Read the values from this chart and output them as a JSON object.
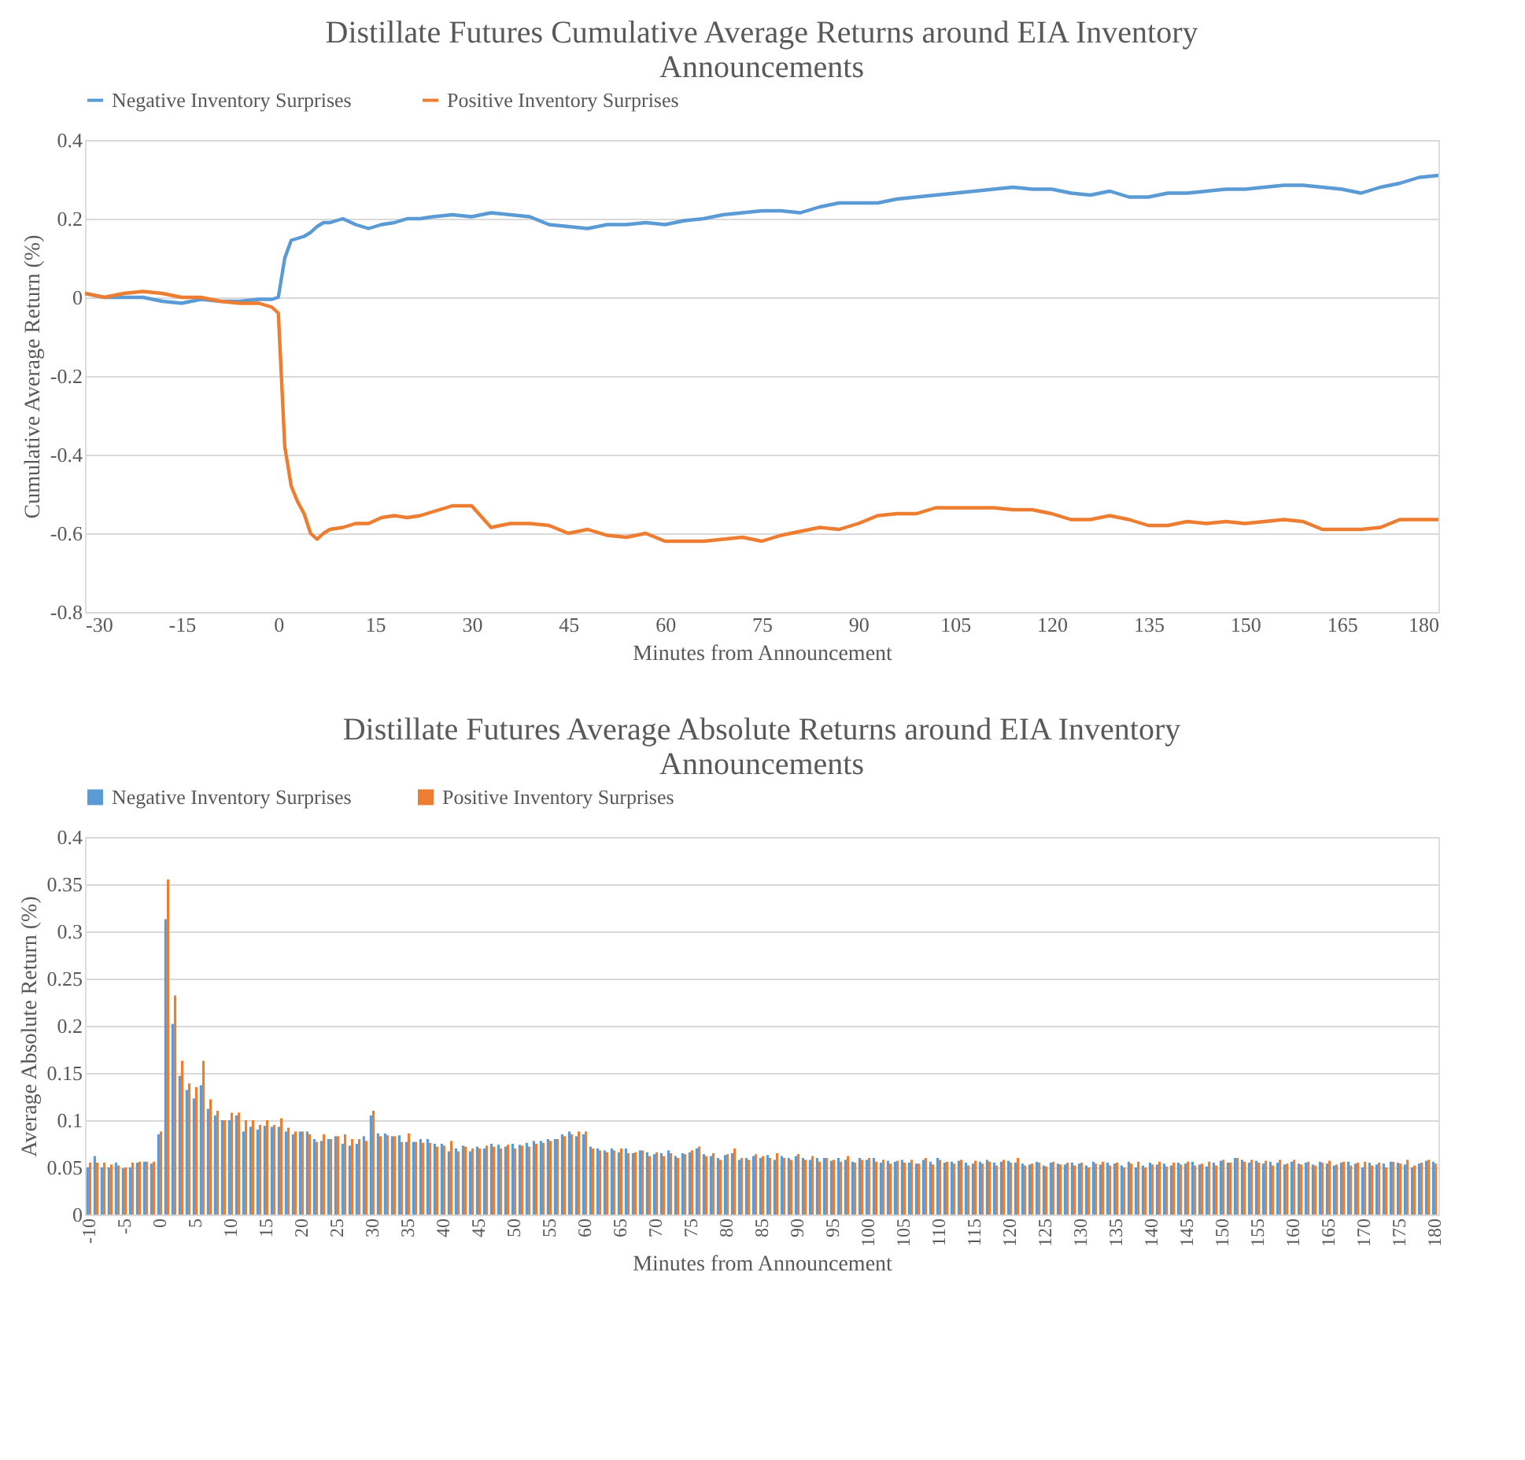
{
  "chart_data": [
    {
      "type": "line",
      "title": "Distillate Futures Cumulative Average Returns around EIA Inventory Announcements",
      "xlabel": "Minutes from Announcement",
      "ylabel": "Cumulative Average Return (%)",
      "x": [
        -30,
        -27,
        -24,
        -21,
        -18,
        -15,
        -12,
        -9,
        -6,
        -3,
        -1,
        0,
        1,
        2,
        3,
        4,
        5,
        6,
        7,
        8,
        10,
        12,
        14,
        16,
        18,
        20,
        22,
        24,
        27,
        30,
        33,
        36,
        39,
        42,
        45,
        48,
        51,
        54,
        57,
        60,
        63,
        66,
        69,
        72,
        75,
        78,
        81,
        84,
        87,
        90,
        93,
        96,
        99,
        102,
        105,
        108,
        111,
        114,
        117,
        120,
        123,
        126,
        129,
        132,
        135,
        138,
        141,
        144,
        147,
        150,
        153,
        156,
        159,
        162,
        165,
        168,
        171,
        174,
        177,
        180
      ],
      "series": [
        {
          "name": "Negative Inventory Surprises",
          "color": "#5b9bd5",
          "values": [
            0.01,
            0.0,
            0.0,
            0.0,
            -0.01,
            -0.015,
            -0.005,
            -0.01,
            -0.01,
            -0.005,
            -0.005,
            0.0,
            0.1,
            0.145,
            0.15,
            0.155,
            0.165,
            0.18,
            0.19,
            0.19,
            0.2,
            0.185,
            0.175,
            0.185,
            0.19,
            0.2,
            0.2,
            0.205,
            0.21,
            0.205,
            0.215,
            0.21,
            0.205,
            0.185,
            0.18,
            0.175,
            0.185,
            0.185,
            0.19,
            0.185,
            0.195,
            0.2,
            0.21,
            0.215,
            0.22,
            0.22,
            0.215,
            0.23,
            0.24,
            0.24,
            0.24,
            0.25,
            0.255,
            0.26,
            0.265,
            0.27,
            0.275,
            0.28,
            0.275,
            0.275,
            0.265,
            0.26,
            0.27,
            0.255,
            0.255,
            0.265,
            0.265,
            0.27,
            0.275,
            0.275,
            0.28,
            0.285,
            0.285,
            0.28,
            0.275,
            0.265,
            0.28,
            0.29,
            0.305,
            0.31
          ]
        },
        {
          "name": "Positive Inventory Surprises",
          "color": "#ed7d31",
          "values": [
            0.01,
            0.0,
            0.01,
            0.015,
            0.01,
            0.0,
            0.0,
            -0.01,
            -0.015,
            -0.015,
            -0.025,
            -0.04,
            -0.38,
            -0.48,
            -0.52,
            -0.55,
            -0.6,
            -0.615,
            -0.6,
            -0.59,
            -0.585,
            -0.575,
            -0.575,
            -0.56,
            -0.555,
            -0.56,
            -0.555,
            -0.545,
            -0.53,
            -0.53,
            -0.585,
            -0.575,
            -0.575,
            -0.58,
            -0.6,
            -0.59,
            -0.605,
            -0.61,
            -0.6,
            -0.62,
            -0.62,
            -0.62,
            -0.615,
            -0.61,
            -0.62,
            -0.605,
            -0.595,
            -0.585,
            -0.59,
            -0.575,
            -0.555,
            -0.55,
            -0.55,
            -0.535,
            -0.535,
            -0.535,
            -0.535,
            -0.54,
            -0.54,
            -0.55,
            -0.565,
            -0.565,
            -0.555,
            -0.565,
            -0.58,
            -0.58,
            -0.57,
            -0.575,
            -0.57,
            -0.575,
            -0.57,
            -0.565,
            -0.57,
            -0.59,
            -0.59,
            -0.59,
            -0.585,
            -0.565,
            -0.565,
            -0.565
          ]
        }
      ],
      "xlim": [
        -30,
        180
      ],
      "xticks": [
        -30,
        -15,
        0,
        15,
        30,
        45,
        60,
        75,
        90,
        105,
        120,
        135,
        150,
        165,
        180
      ],
      "ylim": [
        -0.8,
        0.4
      ],
      "yticks": [
        -0.8,
        -0.6,
        -0.4,
        -0.2,
        0,
        0.2,
        0.4
      ],
      "grid": "y",
      "legend": "top"
    },
    {
      "type": "bar",
      "title": "Distillate Futures Average Absolute Returns around EIA Inventory Announcements",
      "xlabel": "Minutes from Announcement",
      "ylabel": "Average Absolute Return (%)",
      "categories": [
        "-10",
        null,
        null,
        null,
        null,
        "-5",
        null,
        null,
        null,
        null,
        "0",
        null,
        null,
        null,
        null,
        "5",
        null,
        null,
        null,
        null,
        "10",
        null,
        null,
        null,
        null,
        "15",
        null,
        null,
        null,
        null,
        "20",
        null,
        null,
        null,
        null,
        "25",
        null,
        null,
        null,
        null,
        "30",
        null,
        null,
        null,
        null,
        "35",
        null,
        null,
        null,
        null,
        "40",
        null,
        null,
        null,
        null,
        "45",
        null,
        null,
        null,
        null,
        "50",
        null,
        null,
        null,
        null,
        "55",
        null,
        null,
        null,
        null,
        "60",
        null,
        null,
        null,
        null,
        "65",
        null,
        null,
        null,
        null,
        "70",
        null,
        null,
        null,
        null,
        "75",
        null,
        null,
        null,
        null,
        "80",
        null,
        null,
        null,
        null,
        "85",
        null,
        null,
        null,
        null,
        "90",
        null,
        null,
        null,
        null,
        "95",
        null,
        null,
        null,
        null,
        "100",
        null,
        null,
        null,
        null,
        "105",
        null,
        null,
        null,
        null,
        "110",
        null,
        null,
        null,
        null,
        "115",
        null,
        null,
        null,
        null,
        "120",
        null,
        null,
        null,
        null,
        "125",
        null,
        null,
        null,
        null,
        "130",
        null,
        null,
        null,
        null,
        "135",
        null,
        null,
        null,
        null,
        "140",
        null,
        null,
        null,
        null,
        "145",
        null,
        null,
        null,
        null,
        "150",
        null,
        null,
        null,
        null,
        "155",
        null,
        null,
        null,
        null,
        "160",
        null,
        null,
        null,
        null,
        "165",
        null,
        null,
        null,
        null,
        "170",
        null,
        null,
        null,
        null,
        "175",
        null,
        null,
        null,
        null,
        "180"
      ],
      "series": [
        {
          "name": "Negative Inventory Surprises",
          "color": "#5b9bd5",
          "values": [
            0.05,
            0.062,
            0.05,
            0.05,
            0.055,
            0.049,
            0.05,
            0.055,
            0.056,
            0.054,
            0.085,
            0.313,
            0.202,
            0.147,
            0.132,
            0.123,
            0.137,
            0.112,
            0.105,
            0.1,
            0.1,
            0.105,
            0.088,
            0.093,
            0.09,
            0.094,
            0.093,
            0.093,
            0.088,
            0.085,
            0.088,
            0.088,
            0.08,
            0.078,
            0.08,
            0.083,
            0.075,
            0.073,
            0.075,
            0.083,
            0.105,
            0.086,
            0.086,
            0.083,
            0.084,
            0.077,
            0.077,
            0.08,
            0.08,
            0.075,
            0.075,
            0.067,
            0.07,
            0.073,
            0.067,
            0.072,
            0.07,
            0.075,
            0.074,
            0.072,
            0.075,
            0.074,
            0.076,
            0.078,
            0.078,
            0.08,
            0.08,
            0.085,
            0.088,
            0.083,
            0.085,
            0.072,
            0.07,
            0.068,
            0.07,
            0.066,
            0.07,
            0.065,
            0.068,
            0.066,
            0.064,
            0.065,
            0.068,
            0.062,
            0.065,
            0.066,
            0.07,
            0.064,
            0.062,
            0.06,
            0.063,
            0.065,
            0.058,
            0.06,
            0.062,
            0.06,
            0.063,
            0.058,
            0.062,
            0.06,
            0.062,
            0.06,
            0.058,
            0.06,
            0.06,
            0.057,
            0.06,
            0.058,
            0.056,
            0.06,
            0.058,
            0.06,
            0.055,
            0.057,
            0.056,
            0.058,
            0.055,
            0.054,
            0.058,
            0.056,
            0.06,
            0.055,
            0.056,
            0.057,
            0.055,
            0.054,
            0.056,
            0.058,
            0.055,
            0.056,
            0.057,
            0.055,
            0.054,
            0.053,
            0.056,
            0.052,
            0.055,
            0.054,
            0.053,
            0.055,
            0.054,
            0.052,
            0.056,
            0.053,
            0.055,
            0.054,
            0.052,
            0.056,
            0.05,
            0.052,
            0.055,
            0.053,
            0.054,
            0.052,
            0.055,
            0.054,
            0.056,
            0.053,
            0.051,
            0.055,
            0.057,
            0.055,
            0.06,
            0.058,
            0.055,
            0.057,
            0.054,
            0.056,
            0.055,
            0.053,
            0.056,
            0.054,
            0.055,
            0.053,
            0.056,
            0.054,
            0.052,
            0.055,
            0.056,
            0.054,
            0.05,
            0.055,
            0.053,
            0.054,
            0.056,
            0.055,
            0.053,
            0.05,
            0.054,
            0.057,
            0.056
          ]
        },
        {
          "name": "Positive Inventory Surprises",
          "color": "#ed7d31",
          "values": [
            0.055,
            0.055,
            0.055,
            0.053,
            0.052,
            0.05,
            0.055,
            0.056,
            0.056,
            0.056,
            0.088,
            0.355,
            0.232,
            0.163,
            0.139,
            0.135,
            0.163,
            0.122,
            0.11,
            0.1,
            0.108,
            0.108,
            0.1,
            0.1,
            0.095,
            0.1,
            0.095,
            0.102,
            0.092,
            0.088,
            0.088,
            0.085,
            0.077,
            0.085,
            0.08,
            0.083,
            0.085,
            0.08,
            0.08,
            0.078,
            0.11,
            0.083,
            0.084,
            0.083,
            0.077,
            0.086,
            0.077,
            0.076,
            0.076,
            0.072,
            0.073,
            0.078,
            0.067,
            0.072,
            0.07,
            0.07,
            0.073,
            0.072,
            0.07,
            0.074,
            0.07,
            0.073,
            0.072,
            0.075,
            0.076,
            0.078,
            0.08,
            0.083,
            0.085,
            0.088,
            0.088,
            0.07,
            0.068,
            0.066,
            0.068,
            0.07,
            0.065,
            0.066,
            0.068,
            0.062,
            0.066,
            0.062,
            0.065,
            0.06,
            0.064,
            0.068,
            0.072,
            0.062,
            0.065,
            0.058,
            0.064,
            0.07,
            0.06,
            0.058,
            0.064,
            0.062,
            0.06,
            0.065,
            0.06,
            0.058,
            0.064,
            0.058,
            0.062,
            0.056,
            0.06,
            0.058,
            0.056,
            0.062,
            0.055,
            0.058,
            0.06,
            0.056,
            0.058,
            0.054,
            0.057,
            0.055,
            0.058,
            0.054,
            0.06,
            0.053,
            0.058,
            0.056,
            0.054,
            0.058,
            0.052,
            0.057,
            0.054,
            0.056,
            0.052,
            0.058,
            0.055,
            0.06,
            0.052,
            0.054,
            0.055,
            0.051,
            0.056,
            0.053,
            0.055,
            0.052,
            0.055,
            0.05,
            0.054,
            0.056,
            0.052,
            0.055,
            0.05,
            0.054,
            0.056,
            0.05,
            0.053,
            0.056,
            0.051,
            0.055,
            0.053,
            0.056,
            0.052,
            0.054,
            0.056,
            0.052,
            0.058,
            0.055,
            0.06,
            0.056,
            0.058,
            0.055,
            0.057,
            0.052,
            0.058,
            0.054,
            0.058,
            0.053,
            0.056,
            0.052,
            0.055,
            0.057,
            0.053,
            0.056,
            0.052,
            0.055,
            0.056,
            0.052,
            0.055,
            0.05,
            0.056,
            0.054,
            0.058,
            0.052,
            0.055,
            0.058,
            0.054
          ]
        }
      ],
      "ylim": [
        0,
        0.4
      ],
      "yticks": [
        0,
        0.05,
        0.1,
        0.15,
        0.2,
        0.25,
        0.3,
        0.35,
        0.4
      ],
      "grid": "y",
      "legend": "top"
    }
  ]
}
